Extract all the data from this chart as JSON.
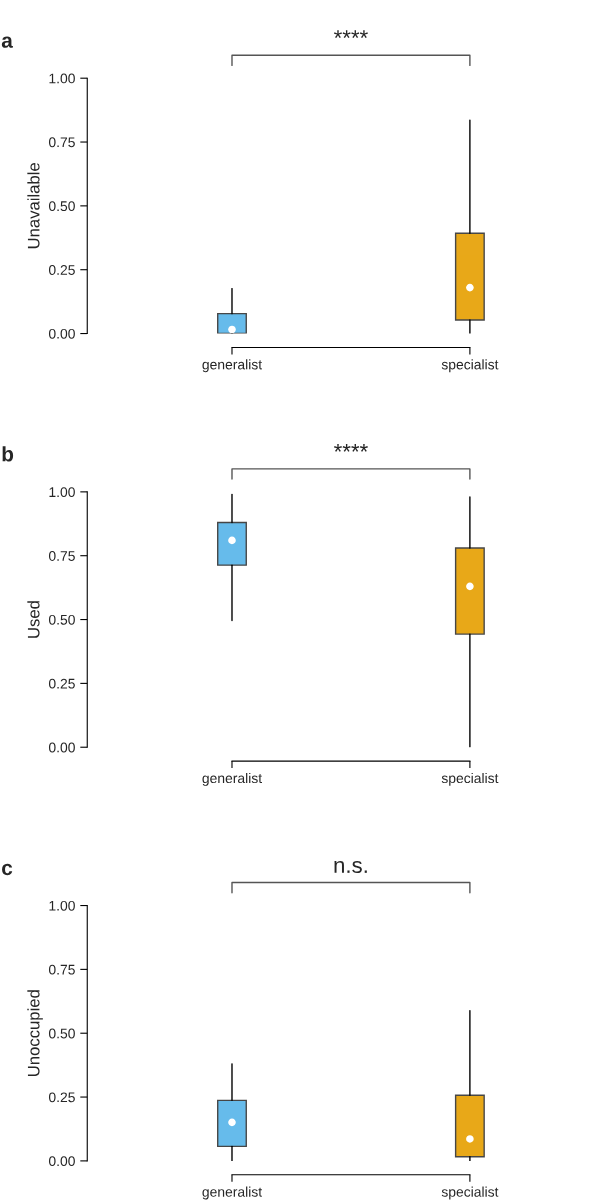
{
  "chart_data": [
    {
      "type": "box",
      "title": "a",
      "ylabel": "Unavailable",
      "categories": [
        "generalist",
        "specialist"
      ],
      "colors": [
        "#56b4e9",
        "#e69f00"
      ],
      "ylim": [
        0,
        1
      ],
      "yticks": [
        {
          "value": 0,
          "label": "0.00"
        },
        {
          "value": 0.25,
          "label": "0.25"
        },
        {
          "value": 0.5,
          "label": "0.50"
        },
        {
          "value": 0.75,
          "label": "0.75"
        },
        {
          "value": 1,
          "label": "1.00"
        }
      ],
      "annotations": [
        "****"
      ],
      "boxes": [
        {
          "low": 0,
          "q1": 0,
          "median": 0.016,
          "q3": 0.078,
          "high": 0.176
        },
        {
          "low": 0,
          "q1": 0.053,
          "median": 0.18,
          "q3": 0.393,
          "high": 0.836
        }
      ]
    },
    {
      "type": "box",
      "title": "b",
      "ylabel": "Used",
      "categories": [
        "generalist",
        "specialist"
      ],
      "colors": [
        "#56b4e9",
        "#e69f00"
      ],
      "ylim": [
        0,
        1
      ],
      "yticks": [
        {
          "value": 0,
          "label": "0.00"
        },
        {
          "value": 0.25,
          "label": "0.25"
        },
        {
          "value": 0.5,
          "label": "0.50"
        },
        {
          "value": 0.75,
          "label": "0.75"
        },
        {
          "value": 1,
          "label": "1.00"
        }
      ],
      "annotations": [
        "****"
      ],
      "boxes": [
        {
          "low": 0.496,
          "q1": 0.713,
          "median": 0.81,
          "q3": 0.88,
          "high": 0.99
        },
        {
          "low": 0,
          "q1": 0.443,
          "median": 0.63,
          "q3": 0.78,
          "high": 0.98
        }
      ]
    },
    {
      "type": "box",
      "title": "c",
      "ylabel": "Unoccupied",
      "categories": [
        "generalist",
        "specialist"
      ],
      "colors": [
        "#56b4e9",
        "#e69f00"
      ],
      "ylim": [
        0,
        1
      ],
      "yticks": [
        {
          "value": 0,
          "label": "0.00"
        },
        {
          "value": 0.25,
          "label": "0.25"
        },
        {
          "value": 0.5,
          "label": "0.50"
        },
        {
          "value": 0.75,
          "label": "0.75"
        },
        {
          "value": 1,
          "label": "1.00"
        }
      ],
      "annotations": [
        "n.s."
      ],
      "boxes": [
        {
          "low": 0,
          "q1": 0.057,
          "median": 0.151,
          "q3": 0.237,
          "high": 0.38
        },
        {
          "low": 0,
          "q1": 0.016,
          "median": 0.086,
          "q3": 0.257,
          "high": 0.588
        }
      ]
    }
  ]
}
